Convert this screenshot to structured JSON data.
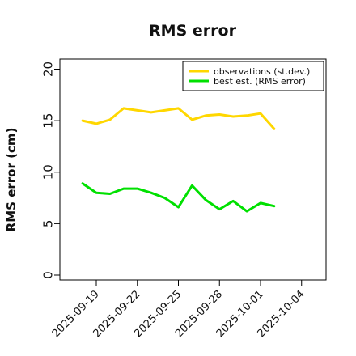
{
  "chart_data": {
    "type": "line",
    "title": "RMS error",
    "xlabel": "",
    "ylabel": "RMS error (cm)",
    "ylim": [
      0,
      21
    ],
    "yticks": [
      0,
      5,
      10,
      15,
      20
    ],
    "x": [
      "2025-09-18",
      "2025-09-19",
      "2025-09-20",
      "2025-09-21",
      "2025-09-22",
      "2025-09-23",
      "2025-09-24",
      "2025-09-25",
      "2025-09-26",
      "2025-09-27",
      "2025-09-28",
      "2025-09-29",
      "2025-09-30",
      "2025-10-01",
      "2025-10-02"
    ],
    "xticks": [
      "2025-09-19",
      "2025-09-22",
      "2025-09-25",
      "2025-09-28",
      "2025-10-01",
      "2025-10-04"
    ],
    "highlight_tick": "2025-09-25",
    "highlight_color": "#008000",
    "legend_position": "top-right",
    "grid": false,
    "series": [
      {
        "name": "observations (st.dev.)",
        "color": "#FFD700",
        "values": [
          15.0,
          14.7,
          15.1,
          16.2,
          16.0,
          15.8,
          16.0,
          16.2,
          15.1,
          15.5,
          15.6,
          15.4,
          15.5,
          15.7,
          14.2
        ]
      },
      {
        "name": "best est. (RMS error)",
        "color": "#00E000",
        "values": [
          8.9,
          8.0,
          7.9,
          8.4,
          8.4,
          8.0,
          7.5,
          6.6,
          8.7,
          7.3,
          6.4,
          7.2,
          6.2,
          7.0,
          6.7
        ]
      }
    ]
  }
}
